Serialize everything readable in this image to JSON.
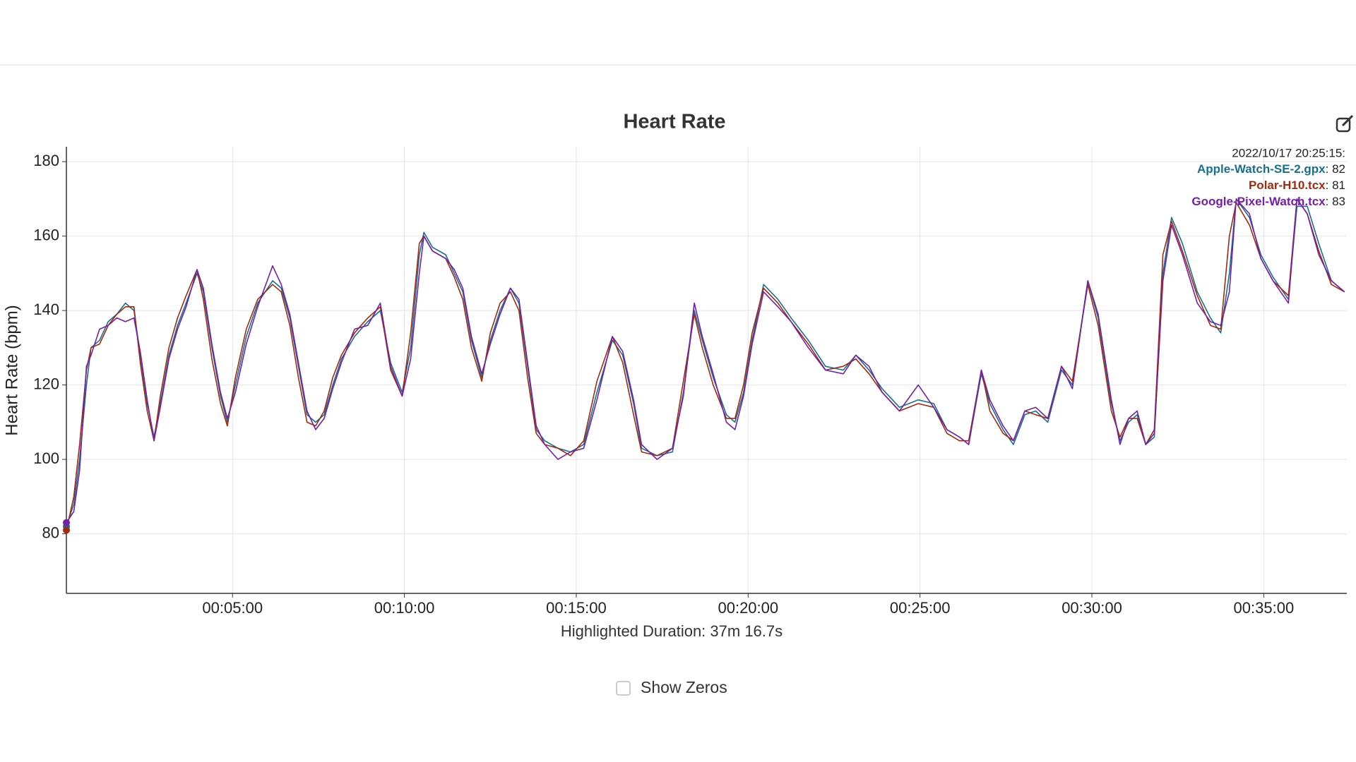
{
  "chart_data": {
    "type": "line",
    "title": "Heart Rate",
    "y_label": "Heart Rate (bpm)",
    "x_label": "Highlighted Duration: 37m 16.7s",
    "hover_time": "2022/10/17 20:25:15:",
    "xlim": [
      10,
      2245
    ],
    "ylim": [
      64,
      184
    ],
    "xticks": [
      {
        "value": 300,
        "label": "00:05:00"
      },
      {
        "value": 600,
        "label": "00:10:00"
      },
      {
        "value": 900,
        "label": "00:15:00"
      },
      {
        "value": 1200,
        "label": "00:20:00"
      },
      {
        "value": 1500,
        "label": "00:25:00"
      },
      {
        "value": 1800,
        "label": "00:30:00"
      },
      {
        "value": 2100,
        "label": "00:35:00"
      }
    ],
    "yticks": [
      80,
      100,
      120,
      140,
      160,
      180
    ],
    "grid": true,
    "x": [
      10,
      23,
      33,
      45,
      53,
      68,
      83,
      98,
      113,
      128,
      139,
      151,
      163,
      174,
      189,
      204,
      219,
      238,
      249,
      264,
      279,
      291,
      305,
      324,
      344,
      370,
      385,
      400,
      415,
      430,
      445,
      460,
      475,
      490,
      513,
      536,
      558,
      576,
      596,
      611,
      626,
      634,
      649,
      672,
      687,
      702,
      717,
      735,
      750,
      767,
      785,
      800,
      815,
      830,
      845,
      868,
      890,
      913,
      936,
      963,
      981,
      1000,
      1014,
      1041,
      1068,
      1087,
      1106,
      1120,
      1139,
      1162,
      1177,
      1192,
      1207,
      1227,
      1252,
      1275,
      1305,
      1335,
      1366,
      1388,
      1411,
      1434,
      1464,
      1497,
      1524,
      1547,
      1569,
      1585,
      1607,
      1622,
      1645,
      1663,
      1683,
      1702,
      1723,
      1747,
      1766,
      1793,
      1811,
      1834,
      1849,
      1864,
      1879,
      1894,
      1909,
      1924,
      1939,
      1958,
      1984,
      2007,
      2025,
      2040,
      2052,
      2075,
      2095,
      2116,
      2143,
      2158,
      2176,
      2196,
      2218,
      2241
    ],
    "series": [
      {
        "name": "Apple-Watch-SE-2.gpx",
        "color": "#17708f",
        "hover_value": 82,
        "hover_label": ": 82",
        "values": [
          82,
          88,
          100,
          120,
          130,
          132,
          137,
          139,
          142,
          140,
          128,
          115,
          106,
          115,
          128,
          136,
          142,
          150,
          145,
          130,
          117,
          110,
          120,
          133,
          142,
          148,
          146,
          138,
          125,
          112,
          110,
          112,
          120,
          127,
          133,
          137,
          140,
          126,
          118,
          130,
          155,
          161,
          157,
          155,
          150,
          145,
          132,
          122,
          132,
          140,
          146,
          142,
          125,
          108,
          105,
          103,
          102,
          104,
          118,
          132,
          128,
          115,
          103,
          101,
          102,
          118,
          140,
          132,
          122,
          112,
          110,
          118,
          132,
          147,
          143,
          138,
          132,
          125,
          124,
          128,
          124,
          119,
          114,
          116,
          115,
          108,
          106,
          104,
          123,
          115,
          108,
          104,
          112,
          113,
          110,
          124,
          120,
          148,
          138,
          115,
          105,
          110,
          112,
          104,
          106,
          150,
          165,
          158,
          145,
          138,
          134,
          150,
          170,
          165,
          155,
          149,
          143,
          168,
          168,
          158,
          148,
          145
        ]
      },
      {
        "name": "Polar-H10.tcx",
        "color": "#a32a0c",
        "hover_value": 81,
        "hover_label": ": 81",
        "values": [
          81,
          90,
          104,
          124,
          130,
          131,
          136,
          139,
          141,
          141,
          126,
          113,
          105,
          117,
          130,
          138,
          144,
          151,
          143,
          127,
          115,
          109,
          122,
          135,
          143,
          147,
          145,
          136,
          122,
          110,
          109,
          113,
          122,
          128,
          134,
          138,
          141,
          124,
          117,
          134,
          158,
          160,
          156,
          154,
          149,
          143,
          130,
          121,
          134,
          142,
          145,
          140,
          122,
          107,
          104,
          103,
          101,
          105,
          121,
          133,
          126,
          112,
          102,
          101,
          103,
          121,
          139,
          130,
          120,
          111,
          111,
          120,
          134,
          146,
          142,
          137,
          131,
          124,
          125,
          127,
          123,
          118,
          113,
          115,
          114,
          107,
          105,
          105,
          124,
          113,
          107,
          105,
          113,
          112,
          111,
          125,
          121,
          147,
          136,
          113,
          106,
          111,
          111,
          104,
          108,
          155,
          164,
          156,
          144,
          136,
          135,
          160,
          169,
          163,
          154,
          148,
          144,
          170,
          166,
          156,
          147,
          145
        ]
      },
      {
        "name": "Google-Pixel-Watch.tcx",
        "color": "#7420a8",
        "hover_value": 83,
        "hover_label": ": 83",
        "values": [
          83,
          86,
          97,
          125,
          128,
          135,
          136,
          138,
          137,
          138,
          129,
          116,
          105,
          114,
          127,
          135,
          141,
          151,
          146,
          131,
          118,
          111,
          118,
          131,
          141,
          152,
          147,
          139,
          126,
          113,
          108,
          111,
          119,
          126,
          135,
          136,
          142,
          125,
          117,
          127,
          150,
          160,
          156,
          154,
          151,
          146,
          133,
          123,
          131,
          139,
          146,
          143,
          126,
          109,
          104,
          100,
          102,
          103,
          116,
          133,
          129,
          116,
          104,
          100,
          103,
          117,
          142,
          133,
          123,
          110,
          108,
          117,
          131,
          145,
          141,
          137,
          130,
          124,
          123,
          128,
          125,
          118,
          113,
          120,
          114,
          108,
          106,
          104,
          124,
          116,
          109,
          105,
          113,
          114,
          111,
          125,
          119,
          148,
          139,
          116,
          104,
          111,
          113,
          104,
          107,
          148,
          163,
          155,
          142,
          137,
          136,
          145,
          170,
          166,
          154,
          148,
          142,
          170,
          166,
          155,
          148,
          145
        ]
      }
    ]
  },
  "controls": {
    "show_zeros": "Show Zeros"
  }
}
